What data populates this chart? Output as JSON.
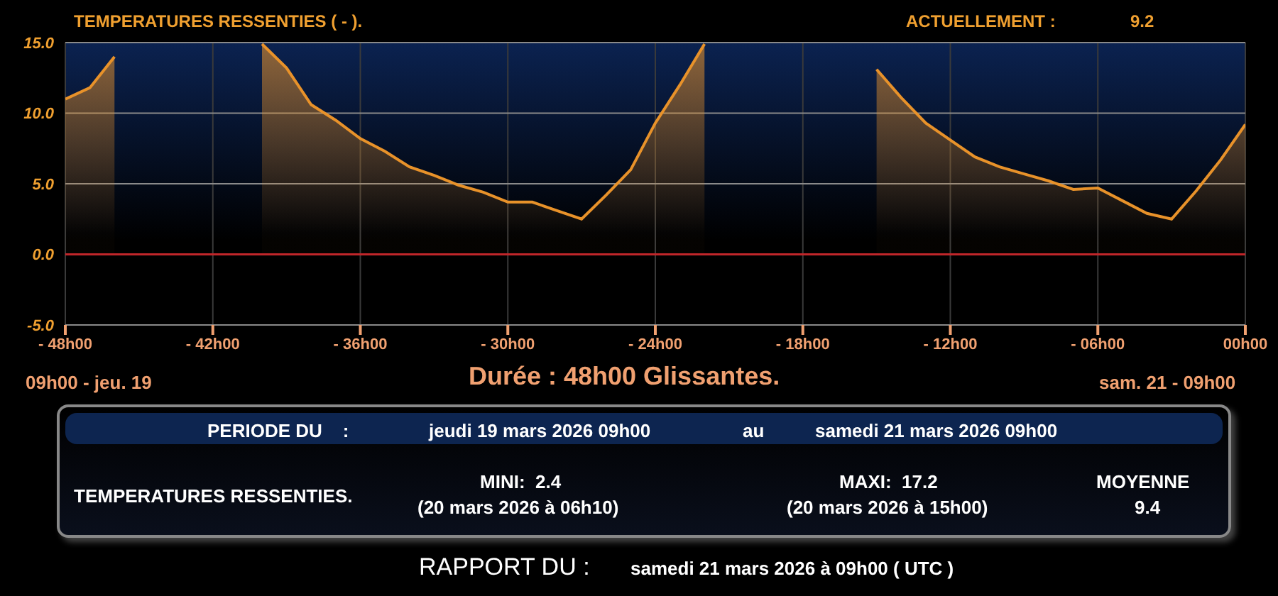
{
  "chart_data": {
    "type": "area",
    "title": "TEMPERATURES RESSENTIES ( - ).",
    "annotations": [
      "ACTUELLEMENT :",
      "9.2",
      "09h00 - jeu. 19",
      "Durée : 48h00 Glissantes.",
      "sam. 21 - 09h00",
      "PERIODE DU    :",
      "jeudi 19 mars 2026 09h00",
      "au",
      "samedi 21 mars 2026 09h00",
      "TEMPERATURES RESSENTIES.",
      "MINI:  2.4",
      "(20 mars 2026 à 06h10)",
      "MAXI:  17.2",
      "(20 mars 2026 à 15h00)",
      "MOYENNE",
      "9.4",
      "RAPPORT DU :",
      "samedi 21 mars 2026 à 09h00 ( UTC )"
    ],
    "categories": [
      "- 48h00",
      null,
      null,
      null,
      null,
      null,
      "- 42h00",
      null,
      null,
      null,
      null,
      null,
      "- 36h00",
      null,
      null,
      null,
      null,
      null,
      "- 30h00",
      null,
      null,
      null,
      null,
      null,
      "- 24h00",
      null,
      null,
      null,
      null,
      null,
      "- 18h00",
      null,
      null,
      null,
      null,
      null,
      "- 12h00",
      null,
      null,
      null,
      null,
      null,
      "- 06h00",
      null,
      null,
      null,
      null,
      null,
      "00h00"
    ],
    "series": [
      {
        "color": "#e8922a",
        "values": [
          11.0,
          11.8,
          14.0,
          null,
          null,
          null,
          null,
          null,
          14.9,
          13.2,
          10.6,
          9.5,
          8.2,
          7.3,
          6.2,
          5.6,
          4.9,
          4.4,
          3.7,
          3.7,
          3.1,
          2.5,
          4.2,
          6.0,
          9.3,
          12.0,
          14.9,
          null,
          null,
          null,
          null,
          null,
          null,
          13.1,
          11.1,
          9.3,
          8.1,
          6.9,
          6.2,
          5.7,
          5.2,
          4.6,
          4.7,
          3.8,
          2.9,
          2.5,
          4.5,
          6.7,
          9.2
        ]
      }
    ],
    "ylim": [
      -5,
      15
    ],
    "yticks": [
      {
        "value": -5,
        "label": "-5.0"
      },
      {
        "value": 0,
        "label": "0.0"
      },
      {
        "value": 5,
        "label": "5.0"
      },
      {
        "value": 10,
        "label": "10.0"
      },
      {
        "value": 15,
        "label": "15.0"
      }
    ],
    "grid": true,
    "ref_lines": [
      {
        "axis": "y",
        "value": 0,
        "color": "#c0262a"
      }
    ]
  }
}
